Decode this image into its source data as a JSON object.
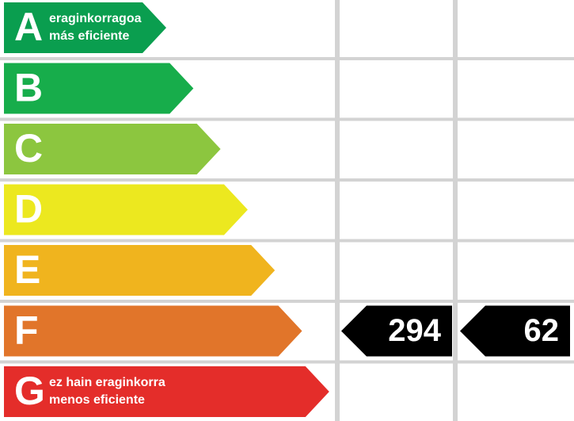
{
  "rows": [
    {
      "letter": "A",
      "text": [
        "eraginkorragoa",
        "más eficiente"
      ],
      "color": "#0a9e4f"
    },
    {
      "letter": "B",
      "color": "#17ad4b"
    },
    {
      "letter": "C",
      "color": "#8cc63f"
    },
    {
      "letter": "D",
      "color": "#ece81f"
    },
    {
      "letter": "E",
      "color": "#f0b41e"
    },
    {
      "letter": "F",
      "color": "#e1752a",
      "ratings": [
        294,
        62
      ]
    },
    {
      "letter": "G",
      "text": [
        "ez hain eraginkorra",
        "menos eficiente"
      ],
      "color": "#e42d2a"
    }
  ]
}
